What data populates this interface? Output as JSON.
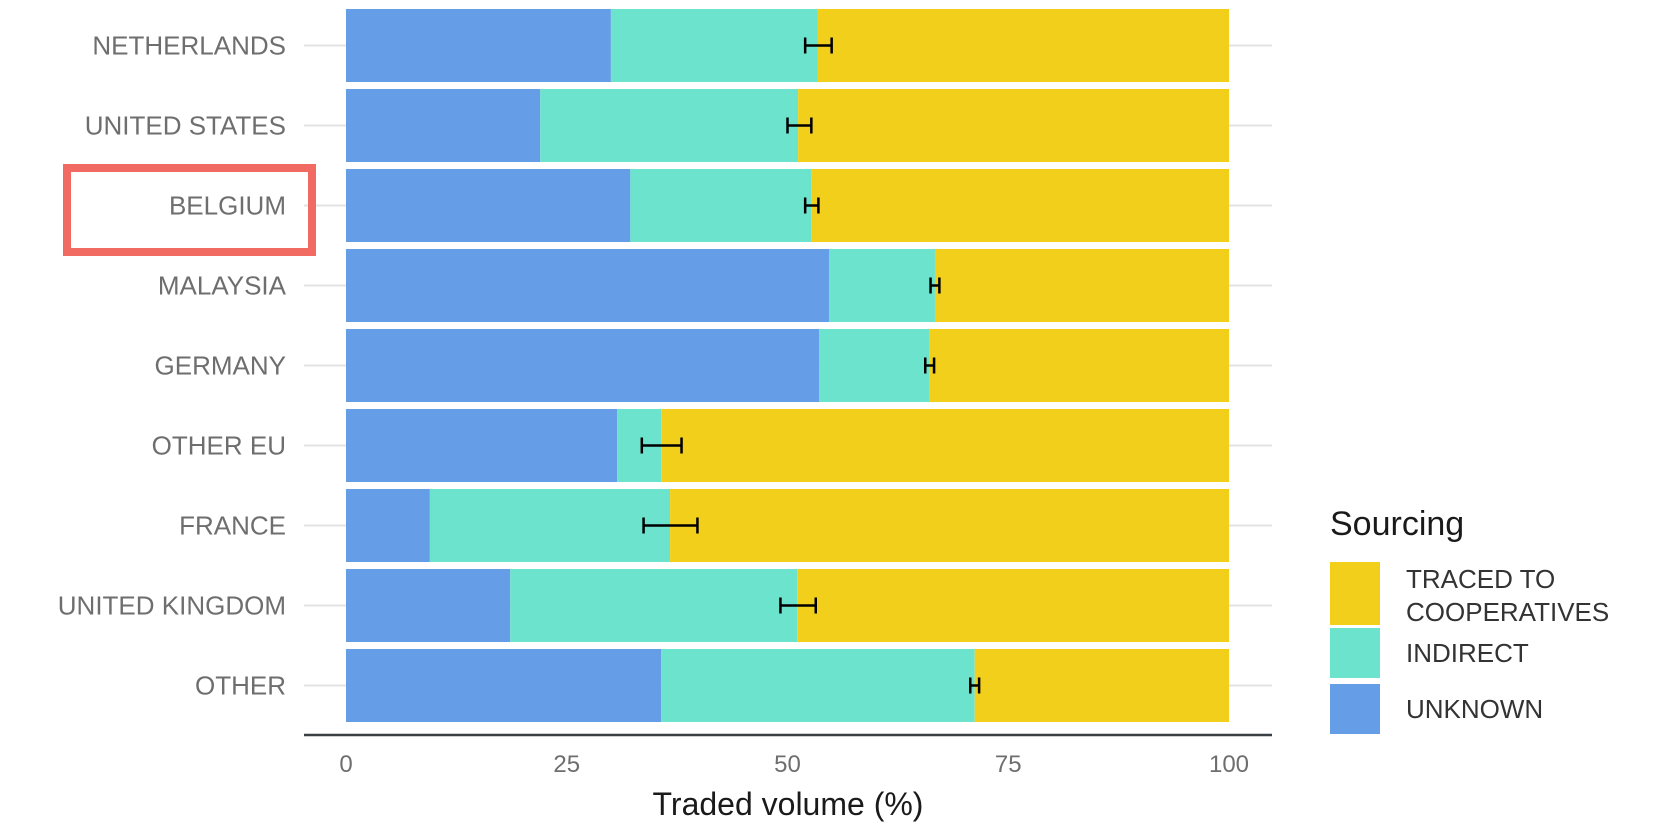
{
  "chart_data": {
    "type": "bar",
    "orientation": "horizontal",
    "stacked": true,
    "categories": [
      "NETHERLANDS",
      "UNITED STATES",
      "BELGIUM",
      "MALAYSIA",
      "GERMANY",
      "OTHER EU",
      "FRANCE",
      "UNITED KINGDOM",
      "OTHER"
    ],
    "series": [
      {
        "name": "UNKNOWN",
        "color": "#659ee6",
        "values": [
          30,
          22,
          32.2,
          54.7,
          53.6,
          30.7,
          9.5,
          18.6,
          35.7
        ]
      },
      {
        "name": "INDIRECT",
        "color": "#6be3cd",
        "values": [
          23.4,
          29.2,
          20.5,
          12,
          12.5,
          5,
          27.2,
          32.5,
          35.5
        ]
      },
      {
        "name": "TRACED TO\nCOOPERATIVES",
        "color": "#f2cf1b",
        "values": [
          46.6,
          48.8,
          47.3,
          33.3,
          33.9,
          64.3,
          63.3,
          48.9,
          28.8
        ]
      }
    ],
    "error_bars": [
      {
        "center": 53.4,
        "low": 52,
        "high": 55
      },
      {
        "center": 51.2,
        "low": 50,
        "high": 52.7
      },
      {
        "center": 52.7,
        "low": 52,
        "high": 53.5
      },
      {
        "center": 66.7,
        "low": 66.2,
        "high": 67.2
      },
      {
        "center": 66.1,
        "low": 65.6,
        "high": 66.6
      },
      {
        "center": 35.7,
        "low": 33.5,
        "high": 38
      },
      {
        "center": 36.7,
        "low": 33.7,
        "high": 39.8
      },
      {
        "center": 51.1,
        "low": 49.2,
        "high": 53.2
      },
      {
        "center": 71.2,
        "low": 70.7,
        "high": 71.7
      }
    ],
    "xlabel": "Traded volume (%)",
    "ylabel": "",
    "xlim": [
      0,
      100
    ],
    "xticks": [
      0,
      25,
      50,
      75,
      100
    ],
    "grid": true,
    "legend": {
      "title": "Sourcing",
      "position": "right",
      "entries": [
        {
          "label": "TRACED TO\nCOOPERATIVES",
          "color": "#f2cf1b"
        },
        {
          "label": "INDIRECT",
          "color": "#6be3cd"
        },
        {
          "label": "UNKNOWN",
          "color": "#659ee6"
        }
      ]
    },
    "highlight": {
      "category": "BELGIUM",
      "color": "#f26b63"
    }
  }
}
